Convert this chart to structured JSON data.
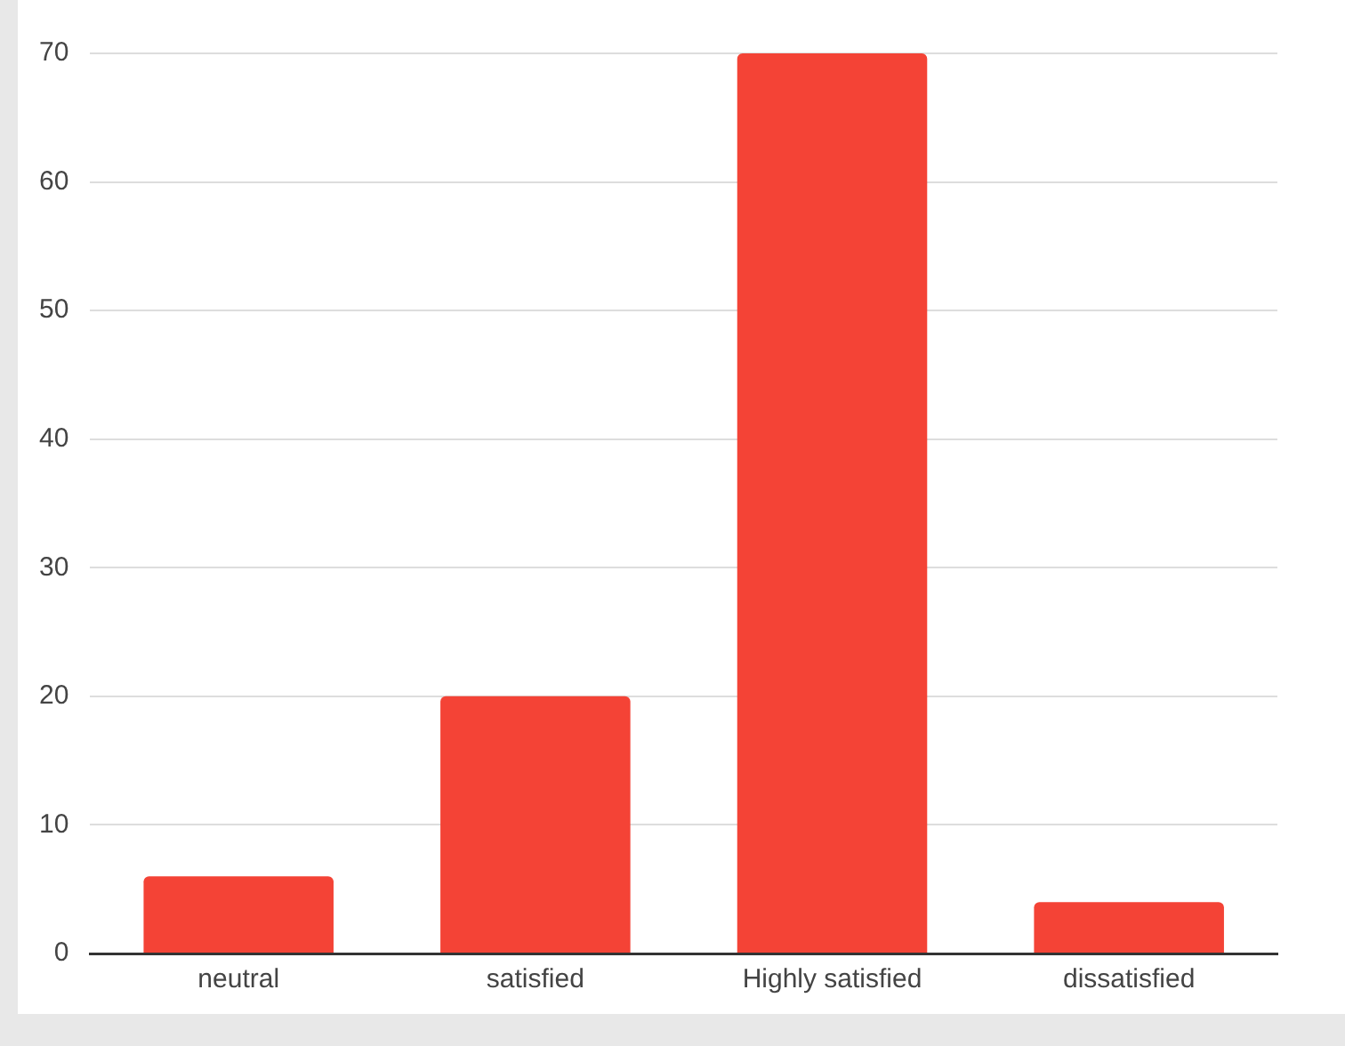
{
  "chart_data": {
    "type": "bar",
    "categories": [
      "neutral",
      "satisfied",
      "Highly satisfied",
      "dissatisfied"
    ],
    "values": [
      6,
      20,
      70,
      4
    ],
    "color": "#f44336",
    "ylim": [
      0,
      70
    ],
    "yticks": [
      0,
      10,
      20,
      30,
      40,
      50,
      60,
      70
    ],
    "grid": "y",
    "legend": false
  }
}
